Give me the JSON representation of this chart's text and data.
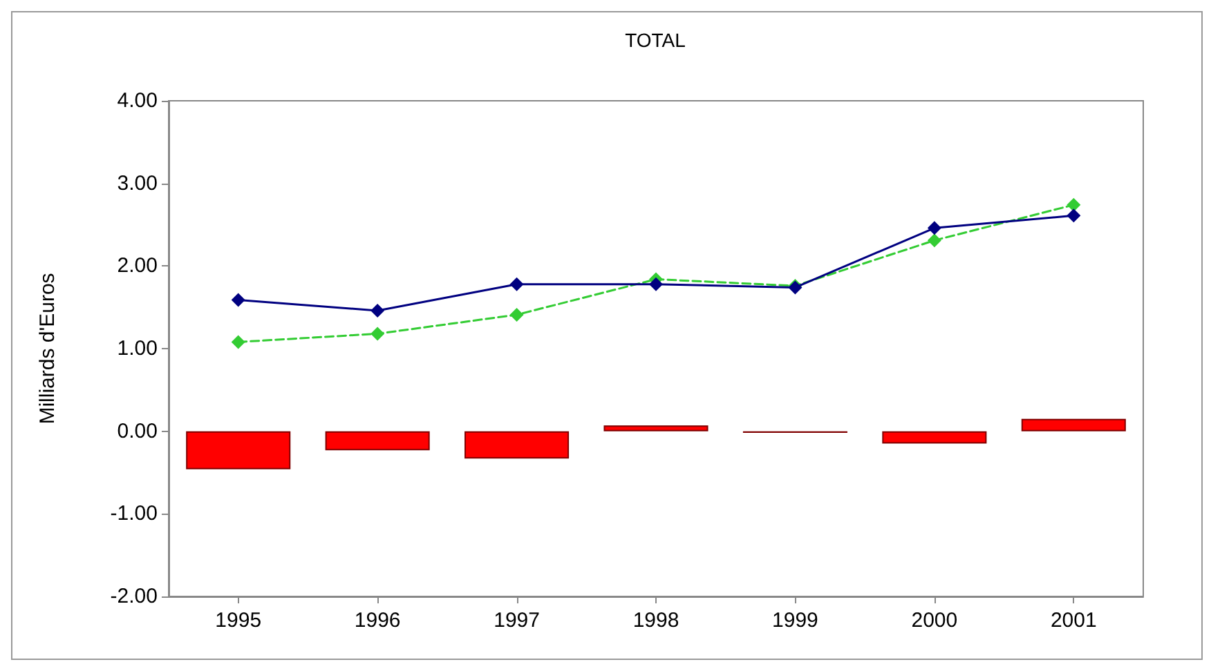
{
  "chart_data": {
    "type": "bar",
    "title": "TOTAL",
    "ylabel": "Milliards d'Euros",
    "categories": [
      "1995",
      "1996",
      "1997",
      "1998",
      "1999",
      "2000",
      "2001"
    ],
    "series": [
      {
        "color": "#ff0000",
        "values": [
          -0.46,
          -0.23,
          -0.33,
          0.07,
          -0.02,
          -0.15,
          0.15
        ]
      },
      {
        "type": "line",
        "color": "#000080",
        "line_style": "solid",
        "values": [
          1.59,
          1.46,
          1.78,
          1.78,
          1.74,
          2.46,
          2.61
        ]
      },
      {
        "type": "line",
        "color": "#33cc33",
        "line_style": "dashed",
        "values": [
          1.08,
          1.18,
          1.41,
          1.84,
          1.76,
          2.31,
          2.74
        ]
      }
    ],
    "ylim": [
      -2,
      4
    ],
    "yticks": [
      {
        "value": -2,
        "label": "-2.00"
      },
      {
        "value": -1,
        "label": "-1.00"
      },
      {
        "value": 0,
        "label": "0.00"
      },
      {
        "value": 1,
        "label": "1.00"
      },
      {
        "value": 2,
        "label": "2.00"
      },
      {
        "value": 3,
        "label": "3.00"
      },
      {
        "value": 4,
        "label": "4.00"
      }
    ],
    "grid": false,
    "marker": "diamond"
  }
}
